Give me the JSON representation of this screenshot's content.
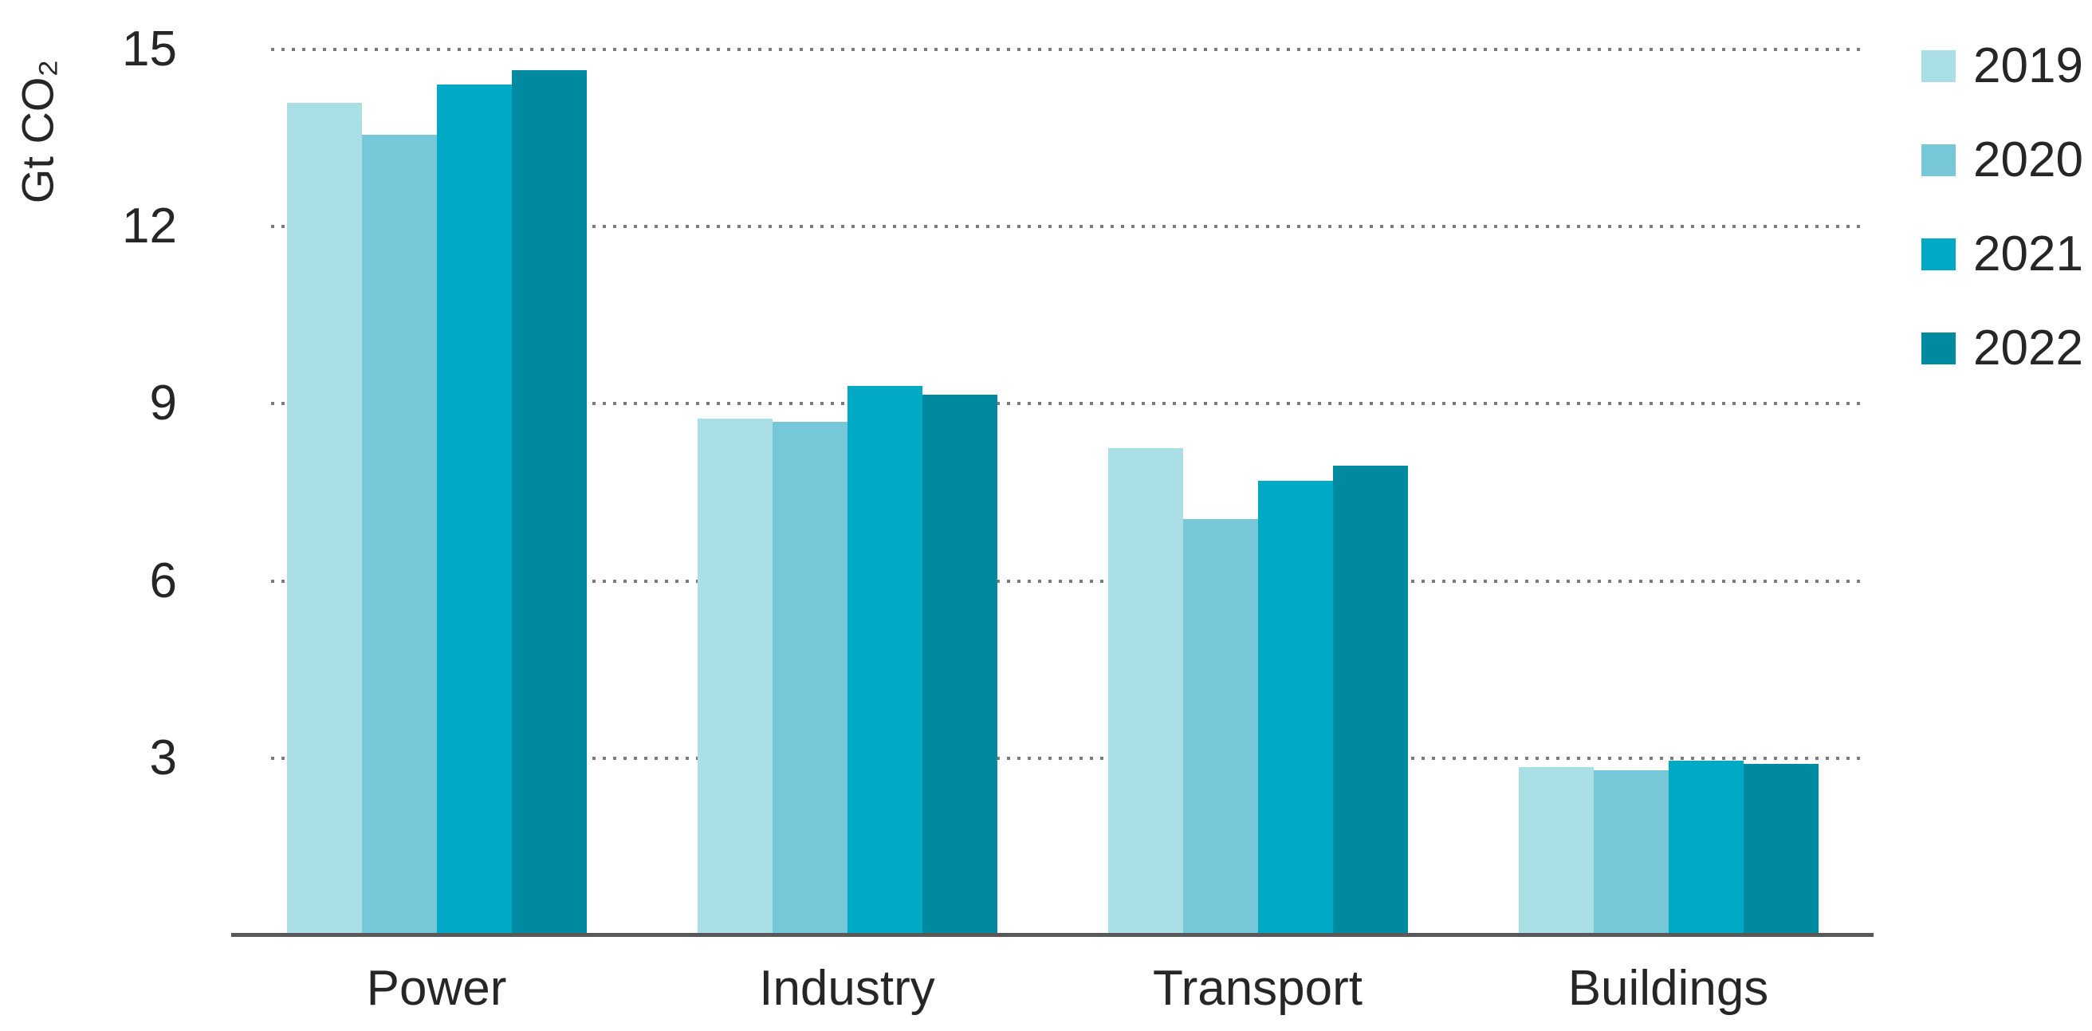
{
  "chart_data": {
    "type": "bar",
    "title": "",
    "ylabel": "Gt CO₂",
    "xlabel": "",
    "categories": [
      "Power",
      "Industry",
      "Transport",
      "Buildings"
    ],
    "series": [
      {
        "name": "2019",
        "color": "#abdfe6",
        "values": [
          14.1,
          8.75,
          8.25,
          2.85
        ]
      },
      {
        "name": "2020",
        "color": "#76c8d8",
        "values": [
          13.55,
          8.7,
          7.05,
          2.8
        ]
      },
      {
        "name": "2021",
        "color": "#00aac5",
        "values": [
          14.4,
          9.3,
          7.7,
          2.95
        ]
      },
      {
        "name": "2022",
        "color": "#008a9f",
        "values": [
          14.65,
          9.15,
          7.95,
          2.9
        ]
      }
    ],
    "yticks": [
      3,
      6,
      9,
      12,
      15
    ],
    "ylim": [
      0,
      15.2
    ],
    "grid": "horizontal dotted gridlines at each y tick",
    "legend_position": "top-right"
  },
  "colors": {
    "axis_line": "#595959",
    "grid_dots": "#7b7b7b",
    "text": "#262626",
    "background": "#ffffff"
  }
}
